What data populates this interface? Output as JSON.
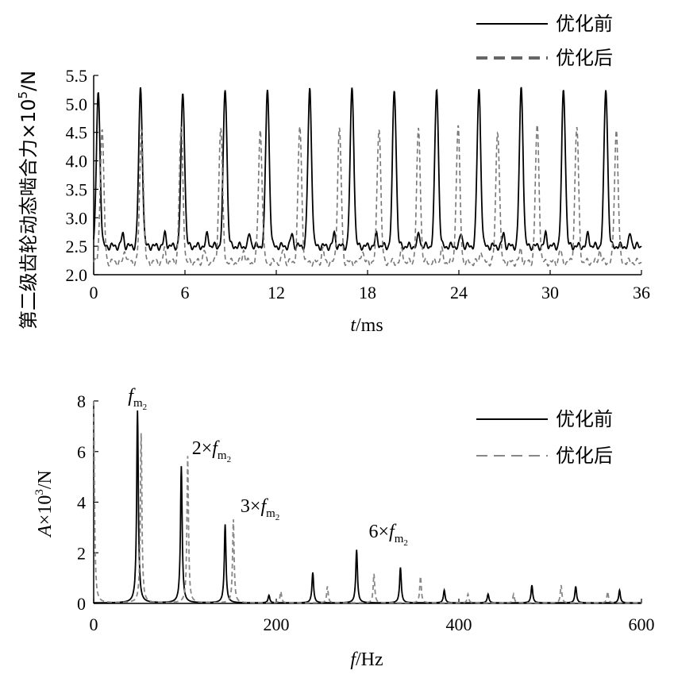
{
  "chart_data": [
    {
      "type": "line",
      "title": "",
      "xlabel_italic": "t",
      "xlabel_unit": "/ms",
      "ylabel_text": "第二级齿轮动态啮合力×10",
      "ylabel_exp": "5",
      "ylabel_unit": "/N",
      "xlim": [
        0,
        36
      ],
      "ylim": [
        2.0,
        5.5
      ],
      "x_ticks": [
        "0",
        "6",
        "12",
        "18",
        "24",
        "30",
        "36"
      ],
      "y_ticks": [
        "2.0",
        "2.5",
        "3.0",
        "3.5",
        "4.0",
        "4.5",
        "5.0",
        "5.5"
      ],
      "legend_position": "top-right",
      "series": [
        {
          "name": "优化前",
          "style": "solid",
          "color": "#000000",
          "pulse_period_ms": 2.78,
          "first_peak_ms": 0.3,
          "peak_values": [
            5.2,
            5.28,
            5.2,
            5.28,
            5.26,
            5.26,
            5.28,
            5.26,
            5.28,
            5.26,
            5.28,
            5.26,
            5.28,
            5.28
          ],
          "baseline": 2.5
        },
        {
          "name": "优化后",
          "style": "dashed",
          "color": "#777777",
          "pulse_period_ms": 2.6,
          "first_peak_ms": 0.55,
          "peak_values": [
            4.55,
            4.6,
            4.55,
            4.6,
            4.55,
            4.6,
            4.55,
            4.6,
            4.55,
            4.6,
            4.55,
            4.6,
            4.6,
            4.55
          ],
          "baseline": 2.22
        }
      ]
    },
    {
      "type": "line",
      "title": "",
      "xlabel_italic": "f",
      "xlabel_unit": "/Hz",
      "ylabel_italic": "A",
      "ylabel_text": "×10",
      "ylabel_exp": "3",
      "ylabel_unit": "/N",
      "xlim": [
        0,
        600
      ],
      "ylim": [
        0,
        8
      ],
      "x_ticks": [
        "0",
        "200",
        "400",
        "600"
      ],
      "y_ticks": [
        "0",
        "2",
        "4",
        "6",
        "8"
      ],
      "legend_position": "top-right",
      "annotations": [
        {
          "prefix": "",
          "f": "f",
          "sub": "m",
          "subsub": "2",
          "at_x": 48
        },
        {
          "prefix": "2×",
          "f": "f",
          "sub": "m",
          "subsub": "2",
          "at_x": 96
        },
        {
          "prefix": "3×",
          "f": "f",
          "sub": "m",
          "subsub": "2",
          "at_x": 144
        },
        {
          "prefix": "6×",
          "f": "f",
          "sub": "m",
          "subsub": "2",
          "at_x": 288
        }
      ],
      "series": [
        {
          "name": "优化前",
          "style": "solid",
          "color": "#000000",
          "peaks": [
            {
              "x": 48,
              "y": 7.6
            },
            {
              "x": 96,
              "y": 5.4
            },
            {
              "x": 144,
              "y": 3.1
            },
            {
              "x": 192,
              "y": 0.3
            },
            {
              "x": 240,
              "y": 1.2
            },
            {
              "x": 288,
              "y": 2.1
            },
            {
              "x": 336,
              "y": 1.4
            },
            {
              "x": 384,
              "y": 0.5
            },
            {
              "x": 432,
              "y": 0.35
            },
            {
              "x": 480,
              "y": 0.7
            },
            {
              "x": 528,
              "y": 0.65
            },
            {
              "x": 576,
              "y": 0.5
            }
          ]
        },
        {
          "name": "优化后",
          "style": "dashed",
          "color": "#888888",
          "peaks": [
            {
              "x": 0,
              "y": 8.0
            },
            {
              "x": 52,
              "y": 6.7
            },
            {
              "x": 103,
              "y": 5.8
            },
            {
              "x": 153,
              "y": 3.3
            },
            {
              "x": 205,
              "y": 0.45
            },
            {
              "x": 256,
              "y": 0.65
            },
            {
              "x": 307,
              "y": 1.15
            },
            {
              "x": 358,
              "y": 1.05
            },
            {
              "x": 410,
              "y": 0.35
            },
            {
              "x": 460,
              "y": 0.35
            },
            {
              "x": 512,
              "y": 0.7
            },
            {
              "x": 563,
              "y": 0.45
            }
          ]
        }
      ]
    }
  ]
}
